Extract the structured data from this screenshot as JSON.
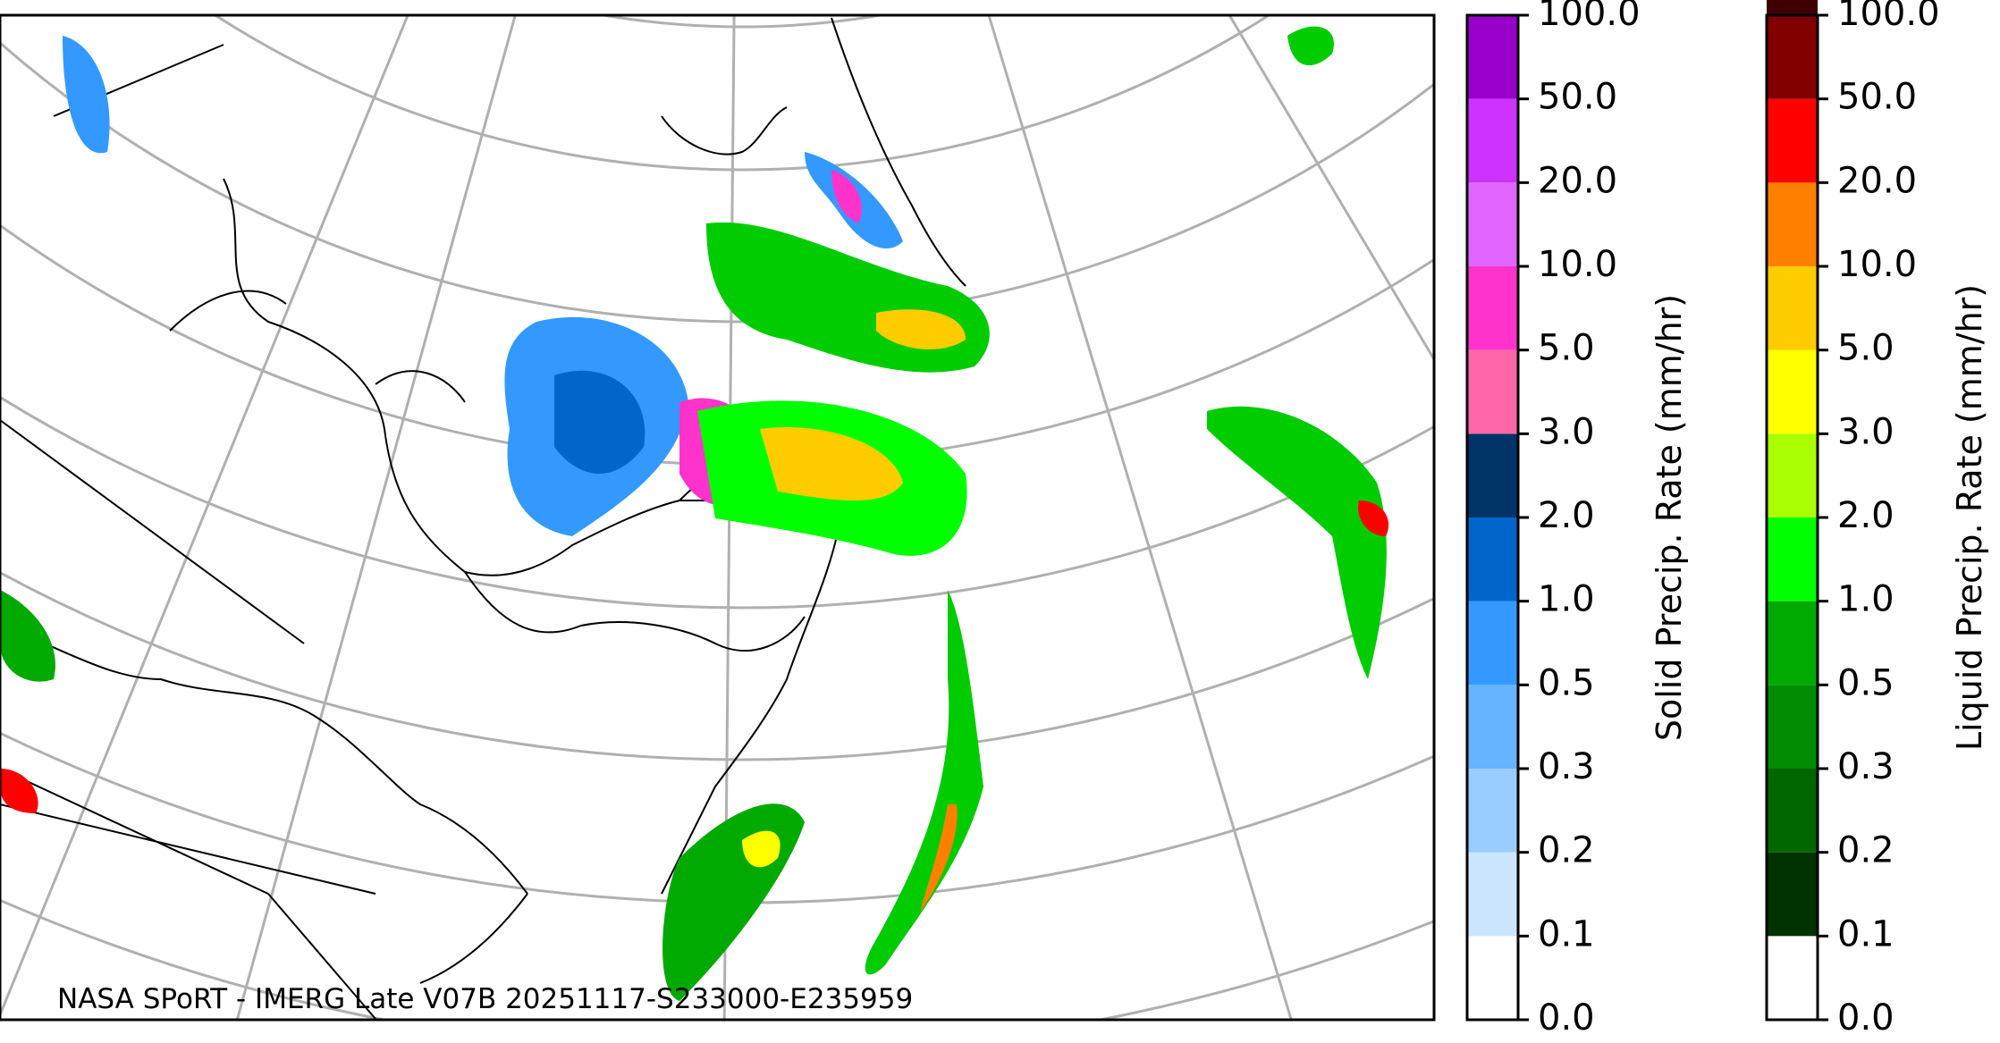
{
  "credit": "NASA SPoRT - IMERG Late V07B 20251117-S233000-E235959",
  "colorbars": [
    {
      "label": "Solid Precip. Rate (mm/hr)",
      "ticks": [
        {
          "value": 0,
          "label": "0.0"
        },
        0.1,
        0.2,
        0.3,
        0.5,
        {
          "value": 1,
          "label": "1.0"
        },
        {
          "value": 2,
          "label": "2.0"
        },
        {
          "value": 3,
          "label": "3.0"
        },
        {
          "value": 5,
          "label": "5.0"
        },
        {
          "value": 10,
          "label": "10.0"
        },
        {
          "value": 20,
          "label": "20.0"
        },
        {
          "value": 50,
          "label": "50.0"
        },
        {
          "value": 100,
          "label": "100.0"
        }
      ],
      "colors": [
        "#ffffff",
        "#cce6ff",
        "#99ccff",
        "#66b3ff",
        "#3399ff",
        "#0066cc",
        "#003366",
        "#ff66aa",
        "#ff33cc",
        "#e066ff",
        "#cc33ff",
        "#9900cc"
      ]
    },
    {
      "label": "Liquid Precip. Rate (mm/hr)",
      "ticks": [
        {
          "value": 0,
          "label": "0.0"
        },
        0.1,
        0.2,
        0.3,
        0.5,
        {
          "value": 1,
          "label": "1.0"
        },
        {
          "value": 2,
          "label": "2.0"
        },
        {
          "value": 3,
          "label": "3.0"
        },
        {
          "value": 5,
          "label": "5.0"
        },
        {
          "value": 10,
          "label": "10.0"
        },
        {
          "value": 20,
          "label": "20.0"
        },
        {
          "value": 50,
          "label": "50.0"
        },
        {
          "value": 100,
          "label": "100.0"
        }
      ],
      "colors": [
        "#ffffff",
        "#003300",
        "#006600",
        "#008c00",
        "#00aa00",
        "#00ff00",
        "#aaff00",
        "#ffff00",
        "#ffcc00",
        "#ff8000",
        "#ff0000",
        "#800000",
        "#400000"
      ]
    }
  ]
}
